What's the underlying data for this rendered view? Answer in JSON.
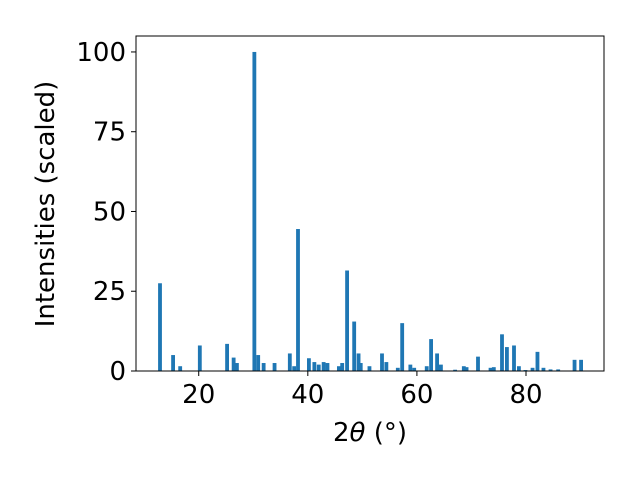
{
  "chart_data": {
    "type": "bar",
    "title": "",
    "xlabel": "2θ (°)",
    "ylabel": "Intensities (scaled)",
    "xlim": [
      8.5,
      94.3
    ],
    "ylim": [
      0,
      105
    ],
    "xticks": [
      20,
      40,
      60,
      80
    ],
    "yticks": [
      0,
      25,
      50,
      75,
      100
    ],
    "grid": false,
    "legend": "none",
    "bar_color": "#1f77b4",
    "bar_width_deg": 0.7,
    "series": [
      {
        "x": [
          12.9,
          15.3,
          16.6,
          20.2,
          25.2,
          26.4,
          27.0,
          30.2,
          30.9,
          31.9,
          33.9,
          36.7,
          37.5,
          38.2,
          40.2,
          41.2,
          42.0,
          42.9,
          43.6,
          45.7,
          46.3,
          47.2,
          48.5,
          49.3,
          49.7,
          51.3,
          53.6,
          54.4,
          56.5,
          57.3,
          58.8,
          59.5,
          61.8,
          62.6,
          63.7,
          64.4,
          67.0,
          68.6,
          69.1,
          71.2,
          73.5,
          74.1,
          75.6,
          76.5,
          77.8,
          78.7,
          79.9,
          81.2,
          82.1,
          83.2,
          84.5,
          85.9,
          88.9,
          90.1
        ],
        "values": [
          27.5,
          5,
          1.5,
          8,
          8.5,
          4.2,
          2.5,
          100,
          5,
          2.5,
          2.5,
          5.5,
          1.5,
          44.5,
          4,
          2.8,
          2,
          2.8,
          2.5,
          1.5,
          2.5,
          31.5,
          15.5,
          5.5,
          2.5,
          1.5,
          5.5,
          2.8,
          1,
          15,
          2,
          1,
          1.5,
          10,
          5.5,
          2,
          0.4,
          1.5,
          1.2,
          4.5,
          1,
          1.2,
          11.5,
          7.5,
          8,
          1.5,
          0.3,
          1,
          6,
          1,
          0.5,
          0.5,
          3.5,
          3.5
        ]
      }
    ]
  }
}
